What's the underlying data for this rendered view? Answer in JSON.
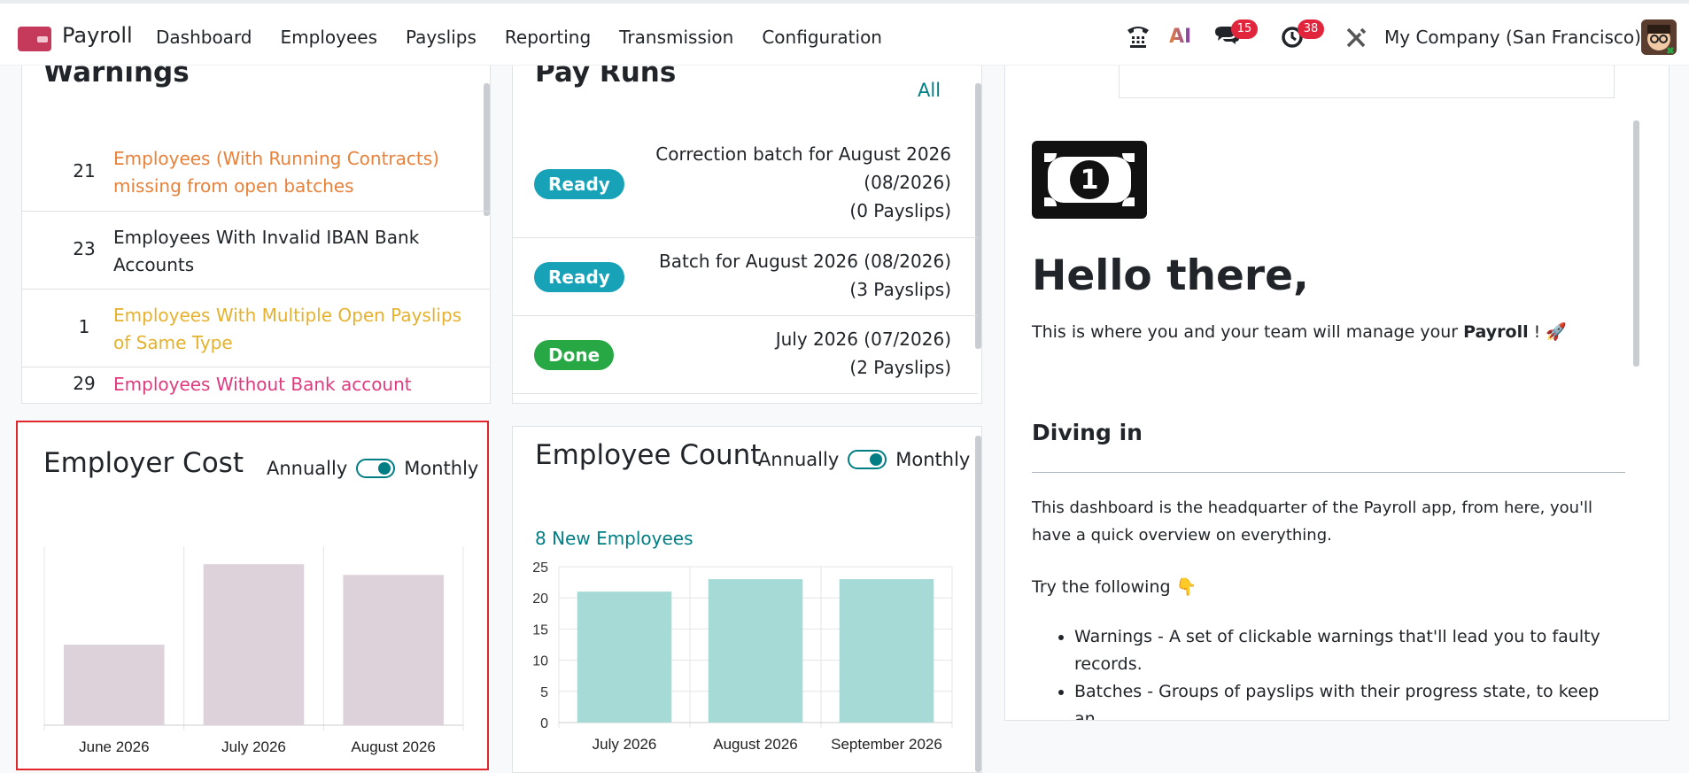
{
  "nav": {
    "app_name": "Payroll",
    "menu": [
      "Dashboard",
      "Employees",
      "Payslips",
      "Reporting",
      "Transmission",
      "Configuration"
    ],
    "ai_label": "AI",
    "messages_badge": "15",
    "activities_badge": "38",
    "company": "My Company (San Francisco)"
  },
  "warnings": {
    "title": "Warnings",
    "items": [
      {
        "count": "21",
        "label": "Employees (With Running Contracts) missing from open batches",
        "color": "#e8813a"
      },
      {
        "count": "23",
        "label": "Employees With Invalid IBAN Bank Accounts",
        "color": "#212529"
      },
      {
        "count": "1",
        "label": "Employees With Multiple Open Payslips of Same Type",
        "color": "#e5b12e"
      },
      {
        "count": "29",
        "label": "Employees Without Bank account Number",
        "color": "#e03a7e"
      }
    ]
  },
  "pay_runs": {
    "title": "Pay Runs",
    "all_link": "All",
    "items": [
      {
        "status": "Ready",
        "status_color": "#17a2b8",
        "lines": [
          "Correction batch for August 2026",
          "(08/2026)",
          "(0 Payslips)"
        ]
      },
      {
        "status": "Ready",
        "status_color": "#17a2b8",
        "lines": [
          "Batch for August 2026 (08/2026)",
          "(3 Payslips)"
        ]
      },
      {
        "status": "Done",
        "status_color": "#28a745",
        "lines": [
          "July 2026 (07/2026)",
          "(2 Payslips)"
        ]
      }
    ]
  },
  "employer_cost": {
    "title": "Employer Cost",
    "toggle_left": "Annually",
    "toggle_right": "Monthly",
    "bar_color": "#ddd1da"
  },
  "employee_count": {
    "title": "Employee Count",
    "toggle_left": "Annually",
    "toggle_right": "Monthly",
    "new_employees_link": "8 New Employees",
    "bar_color": "#a6dad7"
  },
  "chart_data": [
    {
      "type": "bar",
      "title": "Employer Cost",
      "categories": [
        "June 2026",
        "July 2026",
        "August 2026"
      ],
      "values": [
        45,
        90,
        84
      ],
      "yaxis_visible": false,
      "ylim": [
        0,
        100
      ],
      "grid": true
    },
    {
      "type": "bar",
      "title": "Employee Count",
      "categories": [
        "July 2026",
        "August 2026",
        "September 2026"
      ],
      "values": [
        21,
        23,
        23
      ],
      "yticks": [
        "0",
        "5",
        "10",
        "15",
        "20",
        "25"
      ],
      "ylim": [
        0,
        25
      ],
      "grid": true
    }
  ],
  "help": {
    "hello": "Hello there,",
    "intro_prefix": "This is where you and your team will manage your ",
    "intro_bold": "Payroll",
    "intro_suffix": " ! 🚀",
    "diving_in": "Diving in",
    "paragraph": "This dashboard is the headquarter of the Payroll app, from here, you'll have a quick overview on everything.",
    "try": "Try the following 👇",
    "bullets": [
      "Warnings - A set of clickable warnings that'll lead you to faulty records.",
      "Batches - Groups of payslips with their progress state, to keep an"
    ]
  }
}
